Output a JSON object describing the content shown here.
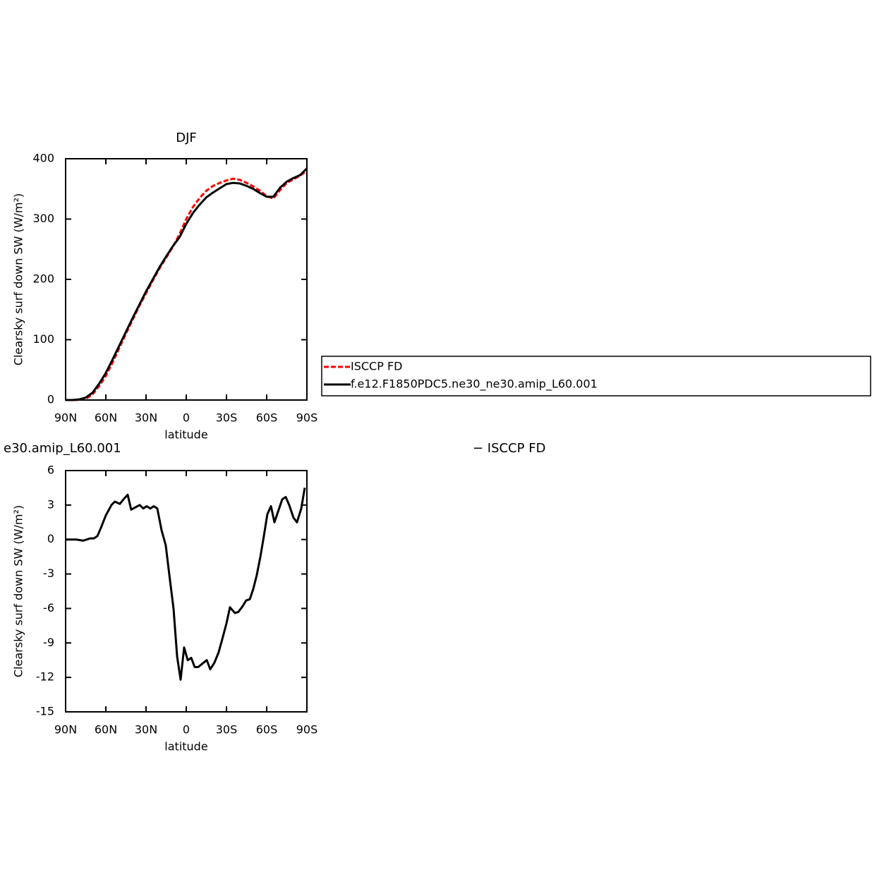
{
  "chart_data": [
    {
      "type": "line",
      "title": "DJF",
      "ylabel": "Clearsky surf down SW (W/m²)",
      "xlabel": "latitude",
      "x": [
        90,
        85,
        80,
        75,
        70,
        65,
        60,
        55,
        50,
        45,
        40,
        35,
        30,
        25,
        20,
        15,
        10,
        5,
        0,
        -5,
        -10,
        -15,
        -20,
        -25,
        -30,
        -35,
        -40,
        -45,
        -50,
        -55,
        -60,
        -65,
        -70,
        -75,
        -80,
        -85,
        -90
      ],
      "series": [
        {
          "name": "ISCCP FD",
          "color": "#ff0000",
          "dashed": true,
          "values": [
            0,
            0,
            0,
            2,
            9,
            23,
            40,
            62,
            86,
            110,
            133,
            156,
            177,
            198,
            218,
            236,
            254,
            275,
            300,
            320,
            335,
            347,
            355,
            360,
            364,
            367,
            365,
            360,
            354,
            347,
            338,
            334,
            348,
            360,
            366,
            372,
            380
          ]
        },
        {
          "name": "f.e12.F1850PDC5.ne30_ne30.amip_L60.001",
          "color": "#000000",
          "dashed": false,
          "values": [
            0,
            0,
            1,
            4,
            12,
            27,
            45,
            67,
            90,
            113,
            136,
            158,
            180,
            200,
            220,
            238,
            255,
            270,
            292,
            310,
            324,
            336,
            344,
            351,
            358,
            360,
            359,
            355,
            350,
            343,
            337,
            337,
            352,
            362,
            368,
            373,
            384
          ]
        }
      ],
      "xlim": [
        90,
        -90
      ],
      "xticks": [
        {
          "value": 90,
          "label": "90N"
        },
        {
          "value": 60,
          "label": "60N"
        },
        {
          "value": 30,
          "label": "30N"
        },
        0,
        {
          "value": -30,
          "label": "30S"
        },
        {
          "value": -60,
          "label": "60S"
        },
        {
          "value": -90,
          "label": "90S"
        }
      ],
      "ylim": [
        0,
        400
      ],
      "yticks": [
        0,
        100,
        200,
        300,
        400
      ],
      "legend": "right"
    },
    {
      "type": "line",
      "title_left": "e30.amip_L60.001",
      "title_right": "− ISCCP FD",
      "ylabel": "Clearsky surf down SW (W/m²)",
      "xlabel": "latitude",
      "x": [
        90,
        82.1,
        76.8,
        71.6,
        68.9,
        66.3,
        63.7,
        60,
        55.8,
        53.2,
        49.5,
        46.8,
        43.7,
        41.1,
        37.9,
        34.7,
        32.1,
        29.5,
        26.8,
        24.2,
        21.6,
        18.4,
        15.3,
        12.6,
        9.5,
        6.8,
        4.2,
        1.6,
        -1.1,
        -3.7,
        -6.3,
        -8.9,
        -12.1,
        -15.3,
        -17.9,
        -21.1,
        -24.2,
        -26.8,
        -30,
        -32.6,
        -36.3,
        -38.9,
        -42.1,
        -44.7,
        -47.4,
        -50,
        -52.6,
        -55.3,
        -57.9,
        -60.5,
        -63.2,
        -65.8,
        -68.4,
        -71.6,
        -74.2,
        -76.8,
        -80,
        -82.6,
        -85.8,
        -88.4
      ],
      "values": [
        0,
        0,
        -0.1,
        0.1,
        0.1,
        0.3,
        1.0,
        2.1,
        3.0,
        3.3,
        3.1,
        3.5,
        3.9,
        2.6,
        2.8,
        3.0,
        2.7,
        2.9,
        2.7,
        2.9,
        2.7,
        0.8,
        -0.5,
        -3.1,
        -6.0,
        -10.2,
        -12.2,
        -9.4,
        -10.5,
        -10.3,
        -11.1,
        -11.1,
        -10.8,
        -10.5,
        -11.3,
        -10.7,
        -9.8,
        -8.7,
        -7.3,
        -5.9,
        -6.4,
        -6.3,
        -5.8,
        -5.3,
        -5.2,
        -4.3,
        -3.1,
        -1.5,
        0.3,
        2.2,
        2.9,
        1.5,
        2.4,
        3.5,
        3.7,
        3.0,
        1.9,
        1.5,
        2.7,
        4.5
      ],
      "color": "#000000",
      "xlim": [
        90,
        -90
      ],
      "xticks": [
        {
          "value": 90,
          "label": "90N"
        },
        {
          "value": 60,
          "label": "60N"
        },
        {
          "value": 30,
          "label": "30N"
        },
        0,
        {
          "value": -30,
          "label": "30S"
        },
        {
          "value": -60,
          "label": "60S"
        },
        {
          "value": -90,
          "label": "90S"
        }
      ],
      "ylim": [
        -15,
        6
      ],
      "yticks": [
        -15,
        -12,
        -9,
        -6,
        -3,
        0,
        3,
        6
      ]
    }
  ]
}
